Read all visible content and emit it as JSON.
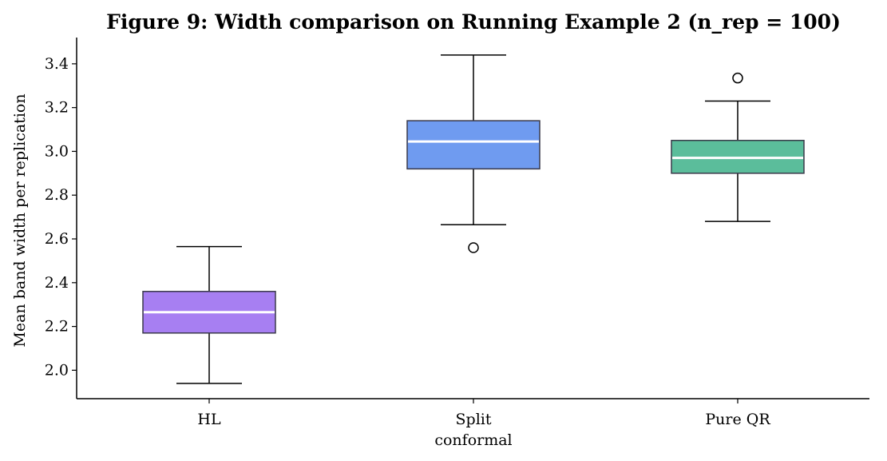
{
  "chart_data": {
    "type": "box",
    "title": "Figure 9: Width comparison on Running Example 2  (n_rep = 100)",
    "xlabel": "",
    "ylabel": "Mean band width per replication",
    "ylim": [
      1.87,
      3.52
    ],
    "yticks": [
      2.0,
      2.2,
      2.4,
      2.6,
      2.8,
      3.0,
      3.2,
      3.4
    ],
    "ytick_labels": [
      "2.0",
      "2.2",
      "2.4",
      "2.6",
      "2.8",
      "3.0",
      "3.2",
      "3.4"
    ],
    "grid": false,
    "categories": [
      "HL",
      "Split\nconformal",
      "Pure QR"
    ],
    "boxes": [
      {
        "label": "HL",
        "whisker_low": 1.94,
        "q1": 2.17,
        "median": 2.265,
        "q3": 2.36,
        "whisker_high": 2.565,
        "outliers": [],
        "color": "#a77ff2"
      },
      {
        "label": "Split\nconformal",
        "whisker_low": 2.665,
        "q1": 2.92,
        "median": 3.045,
        "q3": 3.14,
        "whisker_high": 3.44,
        "outliers": [
          2.56
        ],
        "color": "#6f9bf0"
      },
      {
        "label": "Pure QR",
        "whisker_low": 2.68,
        "q1": 2.9,
        "median": 2.97,
        "q3": 3.05,
        "whisker_high": 3.23,
        "outliers": [
          3.335
        ],
        "color": "#5bbd9b"
      }
    ]
  }
}
